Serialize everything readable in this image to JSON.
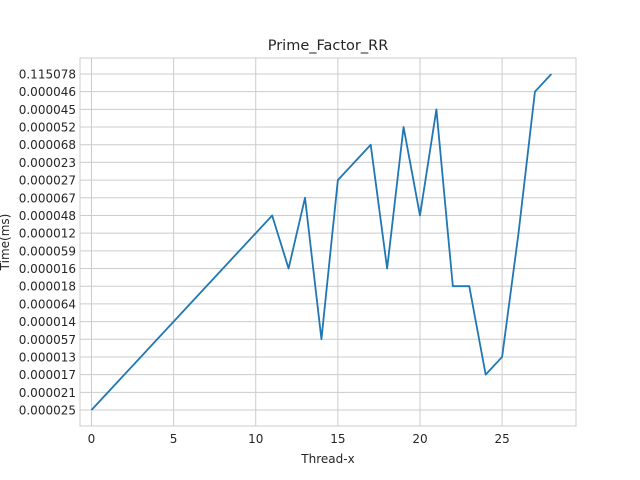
{
  "chart_data": {
    "type": "line",
    "title": "Prime_Factor_RR",
    "xlabel": "Thread-x",
    "ylabel": "Time(ms)",
    "x_ticks": [
      0,
      5,
      10,
      15,
      20,
      25
    ],
    "xlim": [
      -0.7,
      29.5
    ],
    "y_categories": [
      "0.000025",
      "0.000021",
      "0.000017",
      "0.000013",
      "0.000057",
      "0.000014",
      "0.000064",
      "0.000018",
      "0.000016",
      "0.000059",
      "0.000012",
      "0.000048",
      "0.000067",
      "0.000027",
      "0.000023",
      "0.000068",
      "0.000052",
      "0.000045",
      "0.000046",
      "0.115078"
    ],
    "grid": true,
    "legend": "none",
    "series": [
      {
        "color": "#1f77b4",
        "x": [
          0,
          11,
          12,
          13,
          14,
          15,
          17,
          18,
          19,
          20,
          21,
          22,
          23,
          24,
          25,
          26,
          27,
          28
        ],
        "y": [
          "0.000025",
          "0.000048",
          "0.000016",
          "0.000067",
          "0.000057",
          "0.000027",
          "0.000068",
          "0.000016",
          "0.000052",
          "0.000048",
          "0.000045",
          "0.000018",
          "0.000018",
          "0.000017",
          "0.000013",
          "0.000012",
          "0.000046",
          "0.115078"
        ]
      }
    ]
  }
}
